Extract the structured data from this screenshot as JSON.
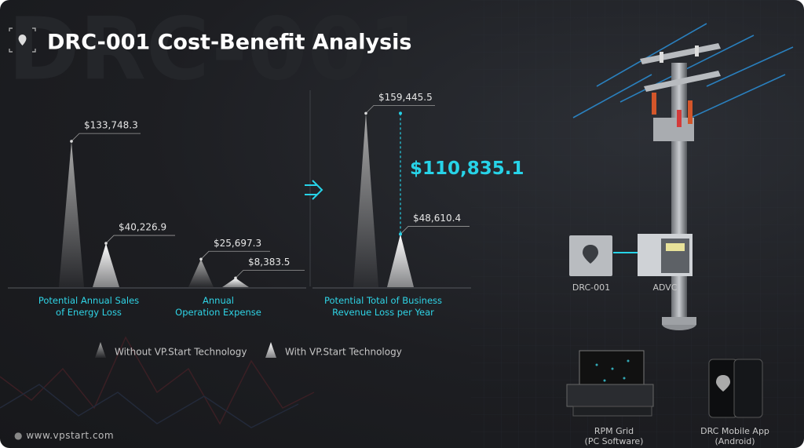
{
  "watermark": "DRC-001",
  "chart_data": {
    "type": "spike",
    "title": "DRC-001 Cost-Benefit Analysis",
    "categories": [
      "Potential Annual Sales\nof Energy Loss",
      "Annual\nOperation Expense",
      "Potential Total of Business\nRevenue Loss per Year"
    ],
    "series": [
      {
        "name": "Without VP.Start Technology",
        "color": "#a8a8a8",
        "values": [
          133748.3,
          25697.3,
          159445.5
        ],
        "value_labels": [
          "$133,748.3",
          "$25,697.3",
          "$159,445.5"
        ]
      },
      {
        "name": "With VP.Start Technology",
        "color": "#ffffff",
        "values": [
          40226.9,
          8383.5,
          48610.4
        ],
        "value_labels": [
          "$40,226.9",
          "$8,383.5",
          "$48,610.4"
        ]
      }
    ],
    "annotation": {
      "text": "$110,835.1",
      "value": 110835.1,
      "color": "#27d3e8"
    }
  },
  "footer": {
    "url": "www.vpstart.com"
  },
  "illustration": {
    "labels": [
      "DRC-001",
      "ADVC",
      "RPM Grid\n(PC Software)",
      "DRC Mobile App\n(Android)"
    ]
  }
}
